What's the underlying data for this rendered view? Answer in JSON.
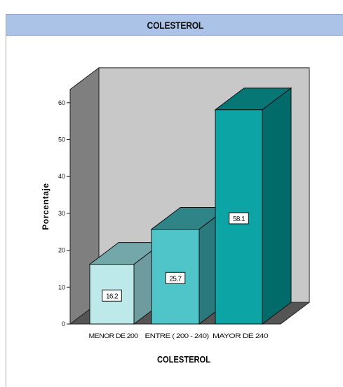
{
  "panel": {
    "title": "COLESTEROL"
  },
  "chart_data": {
    "type": "bar",
    "title": "",
    "xlabel": "COLESTEROL",
    "ylabel": "Porcentaje",
    "categories": [
      "MENOR DE 200",
      "ENTRE ( 200 - 240)",
      "MAYOR DE 240"
    ],
    "values": [
      16.2,
      25.7,
      58.1
    ],
    "data_labels": [
      "16.2",
      "25.7",
      "58.1"
    ],
    "yticks": [
      0,
      10,
      20,
      30,
      40,
      50,
      60
    ],
    "ylim": [
      0,
      60
    ],
    "grid": false,
    "legend": "none",
    "colors": {
      "bar_front": [
        "#bde9ea",
        "#4fc4c9",
        "#0da4a6"
      ],
      "bar_top": [
        "#74a7a9",
        "#2f8487",
        "#077776"
      ],
      "bar_side": [
        "#6e9c9e",
        "#2a7a7d",
        "#006b69"
      ],
      "back_wall": "#c8c8c8",
      "side_wall": "#7f7f7f",
      "floor": "#555555"
    }
  }
}
